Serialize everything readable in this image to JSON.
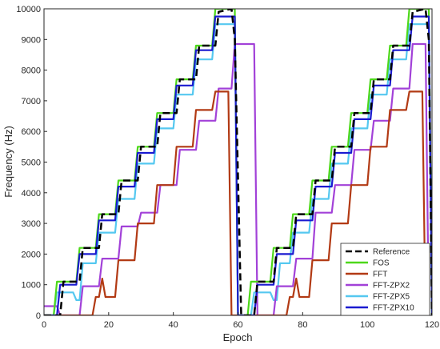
{
  "chart_data": {
    "type": "line",
    "title": "",
    "xlabel": "Epoch",
    "ylabel": "Frequency (Hz)",
    "xlim": [
      0,
      120
    ],
    "ylim": [
      0,
      10000
    ],
    "xticks": [
      0,
      20,
      40,
      60,
      80,
      100,
      120
    ],
    "yticks": [
      0,
      1000,
      2000,
      3000,
      4000,
      5000,
      6000,
      7000,
      8000,
      9000,
      10000
    ],
    "grid": false,
    "legend_position": "bottom-right",
    "series": [
      {
        "name": "Reference",
        "color": "#000000",
        "style": "dashed",
        "x": [
          0,
          5,
          6,
          11,
          12,
          17,
          18,
          23,
          24,
          29,
          30,
          35,
          36,
          41,
          42,
          47,
          48,
          53,
          54,
          58,
          59,
          61,
          65,
          66,
          71,
          72,
          77,
          78,
          83,
          84,
          89,
          90,
          95,
          96,
          101,
          102,
          107,
          108,
          113,
          114,
          118,
          119,
          120
        ],
        "y": [
          0,
          0,
          1100,
          1100,
          2200,
          2200,
          3300,
          3300,
          4400,
          4400,
          5500,
          5500,
          6600,
          6600,
          7700,
          7700,
          8800,
          8800,
          9900,
          10000,
          9000,
          0,
          0,
          1100,
          1100,
          2200,
          2200,
          3300,
          3300,
          4400,
          4400,
          5500,
          5500,
          6600,
          6600,
          7700,
          7700,
          8800,
          8800,
          9900,
          10000,
          9000,
          0
        ]
      },
      {
        "name": "FOS",
        "color": "#4dd81a",
        "style": "solid",
        "x": [
          0,
          3,
          4,
          10,
          11,
          16,
          17,
          22,
          23,
          28,
          29,
          34,
          35,
          40,
          41,
          46,
          47,
          52,
          53,
          59,
          60,
          63,
          64,
          70,
          71,
          76,
          77,
          82,
          83,
          88,
          89,
          94,
          95,
          100,
          101,
          106,
          107,
          112,
          113,
          119,
          120
        ],
        "y": [
          0,
          0,
          1100,
          1100,
          2200,
          2200,
          3300,
          3300,
          4400,
          4400,
          5500,
          5500,
          6600,
          6600,
          7700,
          7700,
          8800,
          8800,
          10000,
          10000,
          0,
          0,
          1100,
          1100,
          2200,
          2200,
          3300,
          3300,
          4400,
          4400,
          5500,
          5500,
          6600,
          6600,
          7700,
          7700,
          8800,
          8800,
          10000,
          10000,
          0
        ]
      },
      {
        "name": "FFT",
        "color": "#b23a14",
        "style": "solid",
        "x": [
          0,
          10,
          11,
          15,
          16,
          17,
          18,
          19,
          22,
          23,
          28,
          29,
          34,
          35,
          40,
          41,
          46,
          47,
          52,
          53,
          57,
          58,
          59,
          70,
          71,
          75,
          76,
          77,
          78,
          79,
          82,
          83,
          88,
          89,
          94,
          95,
          100,
          101,
          106,
          107,
          112,
          113,
          117,
          118,
          119
        ],
        "y": [
          0,
          0,
          0,
          0,
          600,
          600,
          1200,
          600,
          600,
          1800,
          1800,
          3000,
          3000,
          4250,
          4250,
          5500,
          5500,
          6700,
          6700,
          7300,
          7300,
          0,
          0,
          0,
          0,
          0,
          600,
          600,
          1200,
          600,
          600,
          1800,
          1800,
          3000,
          3000,
          4250,
          4250,
          5500,
          5500,
          6700,
          6700,
          7300,
          7300,
          0,
          0
        ]
      },
      {
        "name": "FFT-ZPX2",
        "color": "#a241d8",
        "style": "solid",
        "x": [
          0,
          4,
          5,
          11,
          12,
          17,
          18,
          23,
          24,
          29,
          30,
          35,
          36,
          41,
          42,
          47,
          48,
          53,
          54,
          58,
          59,
          65,
          66,
          71,
          72,
          77,
          78,
          83,
          84,
          89,
          90,
          95,
          96,
          101,
          102,
          107,
          108,
          113,
          114,
          118,
          119
        ],
        "y": [
          300,
          300,
          0,
          0,
          950,
          950,
          1850,
          1850,
          2900,
          2900,
          3350,
          3350,
          4250,
          4250,
          5400,
          5400,
          6350,
          6350,
          7400,
          7400,
          8850,
          8850,
          0,
          0,
          950,
          950,
          1850,
          1850,
          3350,
          3350,
          4250,
          4250,
          5400,
          5400,
          6350,
          6350,
          7400,
          7400,
          8850,
          8850,
          0
        ]
      },
      {
        "name": "FFT-ZPX5",
        "color": "#55c8f0",
        "style": "solid",
        "x": [
          0,
          3,
          4,
          9,
          10,
          11,
          12,
          16,
          17,
          22,
          23,
          28,
          29,
          34,
          35,
          40,
          41,
          46,
          47,
          52,
          53,
          59,
          60,
          64,
          65,
          70,
          71,
          72,
          73,
          76,
          77,
          82,
          83,
          88,
          89,
          94,
          95,
          100,
          101,
          106,
          107,
          112,
          113,
          119,
          120
        ],
        "y": [
          0,
          0,
          750,
          750,
          500,
          500,
          1700,
          1700,
          2700,
          2700,
          3800,
          3800,
          4950,
          4950,
          6100,
          6100,
          7200,
          7200,
          8350,
          8350,
          9500,
          9500,
          0,
          0,
          750,
          750,
          500,
          500,
          1700,
          1700,
          2700,
          2700,
          3800,
          3800,
          4950,
          4950,
          6100,
          6100,
          7200,
          7200,
          8350,
          8350,
          9500,
          9500,
          0
        ]
      },
      {
        "name": "FFT-ZPX10",
        "color": "#1a1ad0",
        "style": "solid",
        "x": [
          0,
          4,
          5,
          10,
          11,
          16,
          17,
          22,
          23,
          28,
          29,
          34,
          35,
          40,
          41,
          46,
          47,
          52,
          53,
          59,
          60,
          65,
          66,
          71,
          72,
          77,
          78,
          83,
          84,
          89,
          90,
          95,
          96,
          101,
          102,
          107,
          108,
          113,
          114,
          119,
          120
        ],
        "y": [
          0,
          0,
          1000,
          1000,
          2000,
          2000,
          3100,
          3100,
          4200,
          4200,
          5300,
          5300,
          6400,
          6400,
          7500,
          7500,
          8650,
          8650,
          9750,
          9750,
          0,
          0,
          1000,
          1000,
          2000,
          2000,
          3100,
          3100,
          4200,
          4200,
          5300,
          5300,
          6400,
          6400,
          7500,
          7500,
          8650,
          8650,
          9750,
          9750,
          0
        ]
      }
    ]
  }
}
